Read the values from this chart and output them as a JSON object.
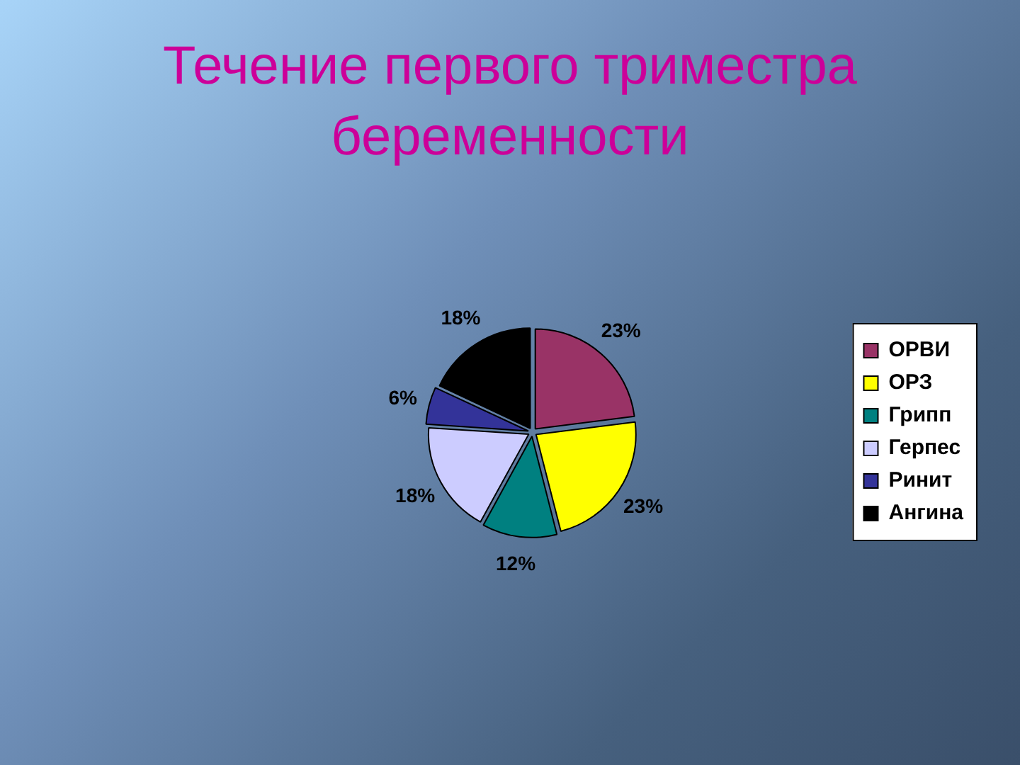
{
  "chart_data": {
    "type": "pie",
    "title": "Течение первого триместра беременности",
    "categories": [
      "ОРВИ",
      "ОРЗ",
      "Грипп",
      "Герпес",
      "Ринит",
      "Ангина"
    ],
    "values": [
      23,
      23,
      12,
      18,
      6,
      18
    ],
    "value_labels": [
      "23%",
      "23%",
      "12%",
      "18%",
      "6%",
      "18%"
    ],
    "colors": [
      "#993366",
      "#ffff00",
      "#008080",
      "#ccccff",
      "#333399",
      "#000000"
    ],
    "legend": "right"
  }
}
